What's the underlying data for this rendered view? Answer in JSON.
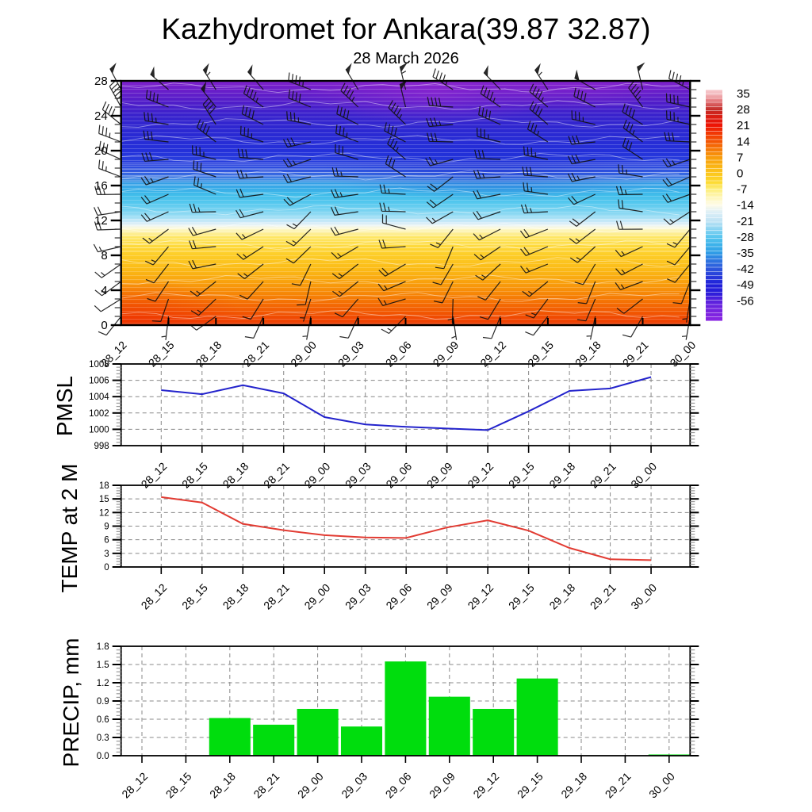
{
  "title": "Kazhydromet for Ankara(39.87 32.87)",
  "subtitle": "28 March 2026",
  "time_labels": [
    "28_12",
    "28_15",
    "28_18",
    "28_21",
    "29_00",
    "29_03",
    "29_06",
    "29_09",
    "29_12",
    "29_15",
    "29_18",
    "29_21",
    "30_00"
  ],
  "chart_data": [
    {
      "type": "heatmap",
      "name": "temperature-wind-cross-section",
      "x": [
        "28_12",
        "28_15",
        "28_18",
        "28_21",
        "29_00",
        "29_03",
        "29_06",
        "29_09",
        "29_12",
        "29_15",
        "29_18",
        "29_21",
        "30_00"
      ],
      "y_ticks": [
        0,
        4,
        8,
        12,
        16,
        20,
        24,
        28
      ],
      "y_range": [
        0,
        28
      ],
      "grid": false,
      "legend_position": "right-colorbar",
      "colorbar": {
        "labels": [
          "35",
          "28",
          "21",
          "14",
          "7",
          "0",
          "-7",
          "-14",
          "-21",
          "-28",
          "-35",
          "-42",
          "-49",
          "-56"
        ],
        "stops": [
          {
            "pos": 0.0,
            "color": "#f6c6ca"
          },
          {
            "pos": 0.017,
            "color": "#f4bec2"
          },
          {
            "pos": 0.05,
            "color": "#e4777b"
          },
          {
            "pos": 0.086,
            "color": "#c32c28"
          },
          {
            "pos": 0.12,
            "color": "#dd1b10"
          },
          {
            "pos": 0.155,
            "color": "#ee1404"
          },
          {
            "pos": 0.19,
            "color": "#f13a04"
          },
          {
            "pos": 0.224,
            "color": "#f35604"
          },
          {
            "pos": 0.26,
            "color": "#f67c08"
          },
          {
            "pos": 0.293,
            "color": "#f89d0c"
          },
          {
            "pos": 0.33,
            "color": "#fab414"
          },
          {
            "pos": 0.362,
            "color": "#fcc61c"
          },
          {
            "pos": 0.4,
            "color": "#fdda30"
          },
          {
            "pos": 0.43,
            "color": "#fdee7a"
          },
          {
            "pos": 0.47,
            "color": "#fef7c0"
          },
          {
            "pos": 0.499,
            "color": "#fefbe8"
          },
          {
            "pos": 0.53,
            "color": "#ddeff7"
          },
          {
            "pos": 0.568,
            "color": "#bfe3f4"
          },
          {
            "pos": 0.6,
            "color": "#8fd5f2"
          },
          {
            "pos": 0.637,
            "color": "#58c6ef"
          },
          {
            "pos": 0.67,
            "color": "#3cb2ea"
          },
          {
            "pos": 0.706,
            "color": "#2f9ce6"
          },
          {
            "pos": 0.74,
            "color": "#2e74e0"
          },
          {
            "pos": 0.775,
            "color": "#2d55dc"
          },
          {
            "pos": 0.81,
            "color": "#2737da"
          },
          {
            "pos": 0.844,
            "color": "#1f1fd9"
          },
          {
            "pos": 0.88,
            "color": "#2b1dda"
          },
          {
            "pos": 0.913,
            "color": "#5a22dd"
          },
          {
            "pos": 0.96,
            "color": "#7a24e0"
          },
          {
            "pos": 1.0,
            "color": "#8a26e2"
          }
        ]
      },
      "fill_stops": [
        {
          "pos": 0.0,
          "color": "#8022cc"
        },
        {
          "pos": 0.035,
          "color": "#6c1ec9"
        },
        {
          "pos": 0.09,
          "color": "#4f1dc9"
        },
        {
          "pos": 0.14,
          "color": "#3922cc"
        },
        {
          "pos": 0.21,
          "color": "#2a28d2"
        },
        {
          "pos": 0.29,
          "color": "#2431da"
        },
        {
          "pos": 0.34,
          "color": "#2a43de"
        },
        {
          "pos": 0.37,
          "color": "#3058e0"
        },
        {
          "pos": 0.395,
          "color": "#3d7ae2"
        },
        {
          "pos": 0.42,
          "color": "#35a0e6"
        },
        {
          "pos": 0.465,
          "color": "#3fbcea"
        },
        {
          "pos": 0.5,
          "color": "#55c8ee"
        },
        {
          "pos": 0.535,
          "color": "#7dd4f1"
        },
        {
          "pos": 0.56,
          "color": "#a5e0f5"
        },
        {
          "pos": 0.58,
          "color": "#cfeaf8"
        },
        {
          "pos": 0.593,
          "color": "#eef6f3"
        },
        {
          "pos": 0.605,
          "color": "#fdf9d0"
        },
        {
          "pos": 0.62,
          "color": "#fdf0a0"
        },
        {
          "pos": 0.643,
          "color": "#fee55e"
        },
        {
          "pos": 0.68,
          "color": "#fed838"
        },
        {
          "pos": 0.715,
          "color": "#fdcc27"
        },
        {
          "pos": 0.77,
          "color": "#fbbb17"
        },
        {
          "pos": 0.82,
          "color": "#f9a30e"
        },
        {
          "pos": 0.875,
          "color": "#f68406"
        },
        {
          "pos": 0.93,
          "color": "#f36203"
        },
        {
          "pos": 0.97,
          "color": "#f04a02"
        },
        {
          "pos": 1.0,
          "color": "#ed3a01"
        }
      ],
      "contour_color": "#ffffff",
      "wind_barbs": {
        "unit": "kt",
        "levels": [
          1,
          3,
          5,
          7,
          9,
          11,
          13,
          15,
          17,
          19,
          21,
          23,
          25,
          27
        ],
        "base": [
          [
            200,
            8
          ],
          [
            210,
            10
          ],
          [
            218,
            12
          ],
          [
            226,
            14
          ],
          [
            234,
            15
          ],
          [
            242,
            17
          ],
          [
            250,
            20
          ],
          [
            257,
            22
          ],
          [
            264,
            25
          ],
          [
            272,
            30
          ],
          [
            282,
            34
          ],
          [
            292,
            38
          ],
          [
            303,
            44
          ],
          [
            315,
            50
          ]
        ],
        "col_dir_offset": [
          28,
          -14,
          36,
          6,
          -26,
          14,
          44,
          -32,
          2,
          22,
          -18,
          32,
          -22
        ],
        "col_spd_offset": [
          2,
          -2,
          4,
          0,
          -4,
          2,
          5,
          -3,
          0,
          3,
          -2,
          2,
          -3
        ]
      }
    },
    {
      "type": "line",
      "name": "PMSL",
      "color": "#2323cc",
      "x": [
        "28_12",
        "28_15",
        "28_18",
        "28_21",
        "29_00",
        "29_03",
        "29_06",
        "29_09",
        "29_12",
        "29_15",
        "29_18",
        "29_21",
        "30_00"
      ],
      "values": [
        1004.8,
        1004.3,
        1005.4,
        1004.4,
        1001.5,
        1000.6,
        1000.3,
        1000.1,
        999.9,
        1002.2,
        1004.7,
        1005.0,
        1006.4
      ],
      "ylim": [
        998,
        1008
      ],
      "yticks": [
        "998",
        "1000",
        "1002",
        "1004",
        "1006",
        "1008"
      ],
      "grid": true
    },
    {
      "type": "line",
      "name": "TEMP at 2 M",
      "color": "#e23b32",
      "x": [
        "28_12",
        "28_15",
        "28_18",
        "28_21",
        "29_00",
        "29_03",
        "29_06",
        "29_09",
        "29_12",
        "29_15",
        "29_18",
        "29_21",
        "30_00"
      ],
      "values": [
        15.4,
        14.2,
        9.5,
        8.1,
        7.0,
        6.5,
        6.4,
        8.7,
        10.3,
        8.0,
        4.2,
        1.7,
        1.5
      ],
      "ylim": [
        0,
        18
      ],
      "yticks": [
        "0",
        "3",
        "6",
        "9",
        "12",
        "15",
        "18"
      ],
      "grid": true
    },
    {
      "type": "bar",
      "name": "PRECIP, mm",
      "color": "#00dd0d",
      "x": [
        "28_12",
        "28_15",
        "28_18",
        "28_21",
        "29_00",
        "29_03",
        "29_06",
        "29_09",
        "29_12",
        "29_15",
        "29_18",
        "29_21",
        "30_00"
      ],
      "values": [
        0,
        0,
        0.62,
        0.51,
        0.77,
        0.48,
        1.55,
        0.97,
        0.77,
        1.27,
        0,
        0,
        0.02
      ],
      "ylim": [
        0,
        1.8
      ],
      "yticks": [
        "0.0",
        "0.3",
        "0.6",
        "0.9",
        "1.2",
        "1.5",
        "1.8"
      ],
      "grid": true
    }
  ]
}
